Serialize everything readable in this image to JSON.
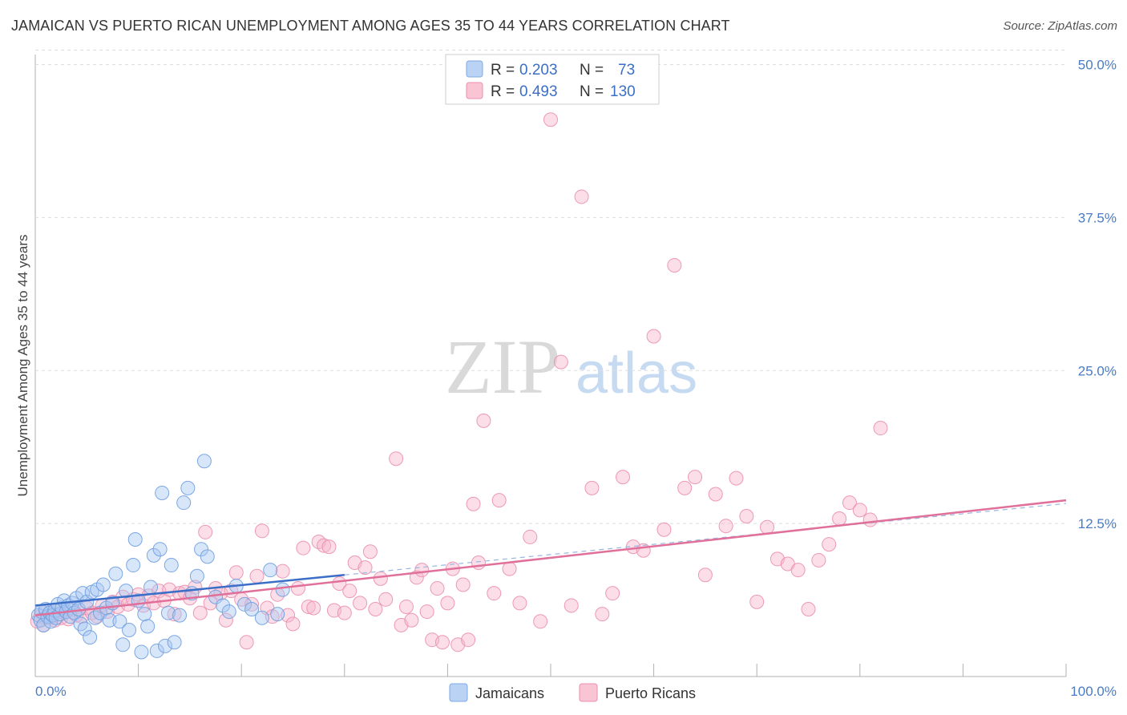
{
  "header": {
    "title": "JAMAICAN VS PUERTO RICAN UNEMPLOYMENT AMONG AGES 35 TO 44 YEARS CORRELATION CHART",
    "source": "Source: ZipAtlas.com"
  },
  "watermark": {
    "zip": "ZIP",
    "atlas": "atlas"
  },
  "legend": {
    "rows": [
      {
        "r_label": "R =",
        "r_value": "0.203",
        "n_label": "N =",
        "n_value": "73",
        "color": "#a9c8f2"
      },
      {
        "r_label": "R =",
        "r_value": "0.493",
        "n_label": "N =",
        "n_value": "130",
        "color": "#f7b6cb"
      }
    ]
  },
  "bottom_legend": [
    {
      "label": "Jamaicans",
      "color": "#a9c8f2"
    },
    {
      "label": "Puerto Ricans",
      "color": "#f7b6cb"
    }
  ],
  "chart_data": {
    "type": "scatter",
    "title": "JAMAICAN VS PUERTO RICAN UNEMPLOYMENT AMONG AGES 35 TO 44 YEARS CORRELATION CHART",
    "xlabel": "",
    "ylabel": "Unemployment Among Ages 35 to 44 years",
    "xlim": [
      0,
      100
    ],
    "ylim": [
      0,
      52
    ],
    "x_tick_labels": [
      "0.0%",
      "100.0%"
    ],
    "y_ticks": [
      12.5,
      25.0,
      37.5,
      50.0
    ],
    "y_tick_labels": [
      "12.5%",
      "25.0%",
      "37.5%",
      "50.0%"
    ],
    "grid": true,
    "legend_position": "top-center",
    "colors": {
      "jamaicans": "#a9c8f2",
      "jamaicans_line": "#3b6fc7",
      "puerto_ricans": "#f7b6cb",
      "puerto_ricans_line": "#e0709a"
    },
    "series": [
      {
        "name": "Jamaicans",
        "trend": {
          "x": [
            0,
            30
          ],
          "y": [
            5.8,
            8.3
          ]
        },
        "points": [
          [
            0.3,
            5.0
          ],
          [
            0.5,
            4.6
          ],
          [
            0.6,
            5.3
          ],
          [
            0.8,
            4.2
          ],
          [
            1.0,
            5.5
          ],
          [
            1.2,
            4.9
          ],
          [
            1.4,
            5.2
          ],
          [
            1.5,
            4.5
          ],
          [
            1.7,
            5.0
          ],
          [
            1.9,
            5.4
          ],
          [
            2.0,
            4.8
          ],
          [
            2.2,
            5.9
          ],
          [
            2.4,
            5.1
          ],
          [
            2.6,
            5.6
          ],
          [
            2.8,
            6.2
          ],
          [
            3.0,
            5.3
          ],
          [
            3.2,
            5.8
          ],
          [
            3.4,
            4.9
          ],
          [
            3.6,
            6.0
          ],
          [
            3.8,
            5.2
          ],
          [
            4.0,
            6.4
          ],
          [
            4.2,
            5.5
          ],
          [
            4.4,
            4.3
          ],
          [
            4.6,
            6.8
          ],
          [
            4.8,
            3.9
          ],
          [
            5.0,
            6.1
          ],
          [
            5.3,
            3.2
          ],
          [
            5.5,
            6.9
          ],
          [
            5.8,
            4.8
          ],
          [
            6.0,
            7.1
          ],
          [
            6.3,
            5.2
          ],
          [
            6.6,
            7.5
          ],
          [
            6.9,
            5.6
          ],
          [
            7.2,
            4.6
          ],
          [
            7.5,
            6.0
          ],
          [
            7.8,
            8.4
          ],
          [
            8.2,
            4.5
          ],
          [
            8.5,
            2.6
          ],
          [
            8.8,
            7.0
          ],
          [
            9.1,
            3.8
          ],
          [
            9.5,
            9.1
          ],
          [
            9.7,
            11.2
          ],
          [
            10.0,
            6.2
          ],
          [
            10.3,
            2.0
          ],
          [
            10.6,
            5.1
          ],
          [
            10.9,
            4.1
          ],
          [
            11.2,
            7.3
          ],
          [
            11.5,
            9.9
          ],
          [
            11.8,
            2.1
          ],
          [
            12.1,
            10.4
          ],
          [
            12.3,
            15.0
          ],
          [
            12.6,
            2.5
          ],
          [
            12.9,
            5.2
          ],
          [
            13.2,
            9.1
          ],
          [
            13.5,
            2.8
          ],
          [
            14.0,
            5.0
          ],
          [
            14.4,
            14.2
          ],
          [
            14.8,
            15.4
          ],
          [
            15.2,
            6.8
          ],
          [
            15.7,
            8.2
          ],
          [
            16.1,
            10.4
          ],
          [
            16.4,
            17.6
          ],
          [
            16.7,
            9.8
          ],
          [
            17.5,
            6.5
          ],
          [
            18.2,
            5.8
          ],
          [
            18.8,
            5.3
          ],
          [
            19.5,
            7.4
          ],
          [
            20.3,
            5.9
          ],
          [
            21.0,
            5.5
          ],
          [
            22.0,
            4.8
          ],
          [
            22.8,
            8.7
          ],
          [
            23.5,
            5.1
          ],
          [
            24.0,
            7.1
          ]
        ]
      },
      {
        "name": "Puerto Ricans",
        "trend": {
          "x": [
            0,
            100
          ],
          "y": [
            5.0,
            14.4
          ]
        },
        "points": [
          [
            0.2,
            4.5
          ],
          [
            0.5,
            4.9
          ],
          [
            0.8,
            4.2
          ],
          [
            1.0,
            5.3
          ],
          [
            1.3,
            4.8
          ],
          [
            1.6,
            5.1
          ],
          [
            1.9,
            4.6
          ],
          [
            2.2,
            5.4
          ],
          [
            2.5,
            4.8
          ],
          [
            2.8,
            5.2
          ],
          [
            3.2,
            4.7
          ],
          [
            3.6,
            5.5
          ],
          [
            4.0,
            5.0
          ],
          [
            4.5,
            4.9
          ],
          [
            5.0,
            5.6
          ],
          [
            5.5,
            5.2
          ],
          [
            6.0,
            4.9
          ],
          [
            6.5,
            5.8
          ],
          [
            7.0,
            5.3
          ],
          [
            7.5,
            6.1
          ],
          [
            8.0,
            5.7
          ],
          [
            8.5,
            6.5
          ],
          [
            9.0,
            5.9
          ],
          [
            9.5,
            6.3
          ],
          [
            10.0,
            6.7
          ],
          [
            10.5,
            5.8
          ],
          [
            11.0,
            6.6
          ],
          [
            11.5,
            6.0
          ],
          [
            12.0,
            7.0
          ],
          [
            12.5,
            6.2
          ],
          [
            13.0,
            7.1
          ],
          [
            13.5,
            5.1
          ],
          [
            14.0,
            6.8
          ],
          [
            14.5,
            6.9
          ],
          [
            15.0,
            6.4
          ],
          [
            15.5,
            7.3
          ],
          [
            16.0,
            5.2
          ],
          [
            16.5,
            11.8
          ],
          [
            17.0,
            6.0
          ],
          [
            17.5,
            7.2
          ],
          [
            18.0,
            6.8
          ],
          [
            18.5,
            4.6
          ],
          [
            19.0,
            7.0
          ],
          [
            19.5,
            8.5
          ],
          [
            20.0,
            6.3
          ],
          [
            20.5,
            2.8
          ],
          [
            21.0,
            5.9
          ],
          [
            21.5,
            8.2
          ],
          [
            22.0,
            11.9
          ],
          [
            22.5,
            5.6
          ],
          [
            23.0,
            4.9
          ],
          [
            23.5,
            6.7
          ],
          [
            24.0,
            8.6
          ],
          [
            24.5,
            5.0
          ],
          [
            25.0,
            4.3
          ],
          [
            25.5,
            7.2
          ],
          [
            26.0,
            10.5
          ],
          [
            26.5,
            5.7
          ],
          [
            27.0,
            5.6
          ],
          [
            27.5,
            11.0
          ],
          [
            28.0,
            10.7
          ],
          [
            28.5,
            10.6
          ],
          [
            29.0,
            5.4
          ],
          [
            29.5,
            7.6
          ],
          [
            30.0,
            5.2
          ],
          [
            30.5,
            7.0
          ],
          [
            31.0,
            9.3
          ],
          [
            31.5,
            6.0
          ],
          [
            32.0,
            8.9
          ],
          [
            32.5,
            10.2
          ],
          [
            33.0,
            5.5
          ],
          [
            33.5,
            8.0
          ],
          [
            34.0,
            6.3
          ],
          [
            35.0,
            17.8
          ],
          [
            35.5,
            4.2
          ],
          [
            36.0,
            5.7
          ],
          [
            36.5,
            4.6
          ],
          [
            37.0,
            8.1
          ],
          [
            37.5,
            8.7
          ],
          [
            38.0,
            5.3
          ],
          [
            38.5,
            3.0
          ],
          [
            39.0,
            7.2
          ],
          [
            39.5,
            2.8
          ],
          [
            40.0,
            6.0
          ],
          [
            40.5,
            8.8
          ],
          [
            41.0,
            2.6
          ],
          [
            41.5,
            7.5
          ],
          [
            42.0,
            3.0
          ],
          [
            42.5,
            14.1
          ],
          [
            43.0,
            9.3
          ],
          [
            43.5,
            20.9
          ],
          [
            44.5,
            6.8
          ],
          [
            45.0,
            14.4
          ],
          [
            46.0,
            8.8
          ],
          [
            47.0,
            6.0
          ],
          [
            48.0,
            11.4
          ],
          [
            49.0,
            4.5
          ],
          [
            50.0,
            45.5
          ],
          [
            51.0,
            25.7
          ],
          [
            52.0,
            5.8
          ],
          [
            53.0,
            39.2
          ],
          [
            54.0,
            15.4
          ],
          [
            55.0,
            5.1
          ],
          [
            56.0,
            6.8
          ],
          [
            57.0,
            16.3
          ],
          [
            58.0,
            10.6
          ],
          [
            59.0,
            10.3
          ],
          [
            60.0,
            27.8
          ],
          [
            61.0,
            12.0
          ],
          [
            62.0,
            33.6
          ],
          [
            63.0,
            15.4
          ],
          [
            64.0,
            16.3
          ],
          [
            65.0,
            8.3
          ],
          [
            66.0,
            14.9
          ],
          [
            67.0,
            12.3
          ],
          [
            68.0,
            16.2
          ],
          [
            69.0,
            13.1
          ],
          [
            70.0,
            6.1
          ],
          [
            71.0,
            12.2
          ],
          [
            72.0,
            9.6
          ],
          [
            73.0,
            9.2
          ],
          [
            74.0,
            8.7
          ],
          [
            75.0,
            5.5
          ],
          [
            76.0,
            9.5
          ],
          [
            77.0,
            10.8
          ],
          [
            78.0,
            12.9
          ],
          [
            79.0,
            14.2
          ],
          [
            80.0,
            13.6
          ],
          [
            81.0,
            12.8
          ],
          [
            82.0,
            20.3
          ]
        ]
      }
    ]
  }
}
